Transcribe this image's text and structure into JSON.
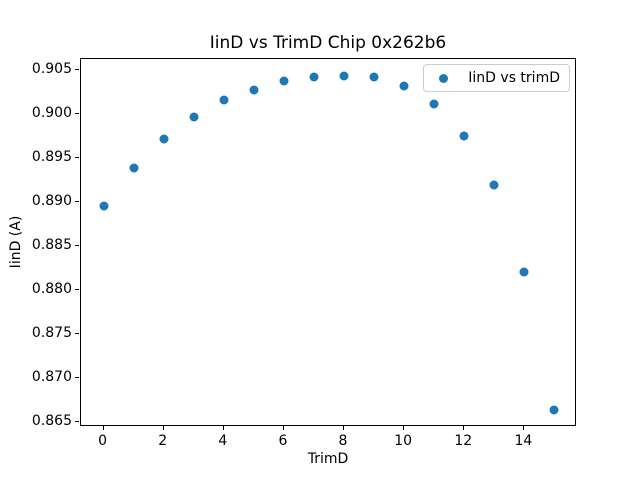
{
  "figure": {
    "background": "#ffffff"
  },
  "chart_data": {
    "type": "scatter",
    "title": "IinD vs TrimD Chip 0x262b6",
    "xlabel": "TrimD",
    "ylabel": "IinD (A)",
    "legend": {
      "label": "IinD vs trimD",
      "position": "upper right"
    },
    "marker_color": "#1f77b4",
    "x": [
      0,
      1,
      2,
      3,
      4,
      5,
      6,
      7,
      8,
      9,
      10,
      11,
      12,
      13,
      14,
      15
    ],
    "y": [
      0.8895,
      0.8938,
      0.8971,
      0.8996,
      0.9015,
      0.9027,
      0.9037,
      0.9041,
      0.9043,
      0.9041,
      0.9031,
      0.9011,
      0.8974,
      0.8919,
      0.882,
      0.8663
    ],
    "xlim": [
      -0.75,
      15.75
    ],
    "ylim": [
      0.8644,
      0.9062
    ],
    "xticks": [
      0,
      2,
      4,
      6,
      8,
      10,
      12,
      14
    ],
    "yticks": [
      0.865,
      0.87,
      0.875,
      0.88,
      0.885,
      0.89,
      0.895,
      0.9,
      0.905
    ],
    "ytick_decimals": 3,
    "grid": false
  }
}
